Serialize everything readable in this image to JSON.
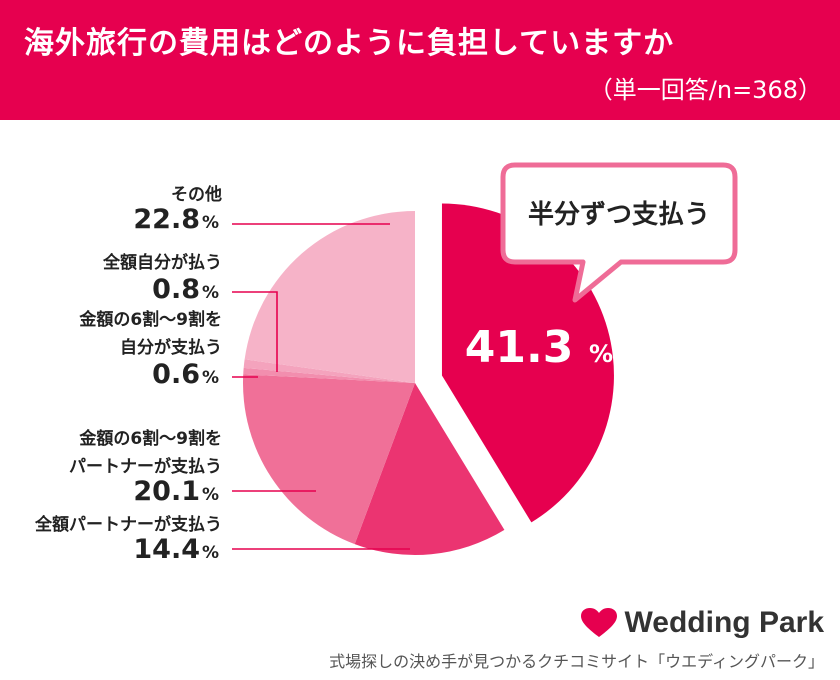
{
  "header": {
    "title": "海外旅行の費用はどのように負担していますか",
    "subtitle": "（単一回答/n=368）",
    "bg_color": "#e6004f"
  },
  "callout": {
    "text": "半分ずつ支払う"
  },
  "chart_data": {
    "type": "pie",
    "title": "海外旅行の費用はどのように負担していますか",
    "subtitle": "（単一回答/n=368）",
    "unit": "%",
    "slices": [
      {
        "name": "半分ずつ支払う",
        "value": 41.3,
        "value_label": "41.3",
        "color": "#e6004f",
        "exploded": true
      },
      {
        "name": "全額パートナーが支払う",
        "value": 14.4,
        "value_label": "14.4",
        "color": "#eb3471"
      },
      {
        "name": "金額の6割〜9割をパートナーが支払う",
        "lines": [
          "金額の6割〜9割を",
          "パートナーが支払う"
        ],
        "value": 20.1,
        "value_label": "20.1",
        "color": "#f07098"
      },
      {
        "name": "金額の6割〜9割を自分が支払う",
        "lines": [
          "金額の6割〜9割を",
          "自分が支払う"
        ],
        "value": 0.6,
        "value_label": "0.6",
        "color": "#f28eae"
      },
      {
        "name": "全額自分が払う",
        "lines": [
          "全額自分が払う"
        ],
        "value": 0.8,
        "value_label": "0.8",
        "color": "#f4a3bd"
      },
      {
        "name": "その他",
        "lines": [
          "その他"
        ],
        "value": 22.8,
        "value_label": "22.8",
        "color": "#f6b3c8"
      }
    ]
  },
  "footer": {
    "brand": "Wedding Park",
    "tagline": "式場探しの決め手が見つかるクチコミサイト「ウエディングパーク」",
    "brand_color": "#e6004f"
  }
}
